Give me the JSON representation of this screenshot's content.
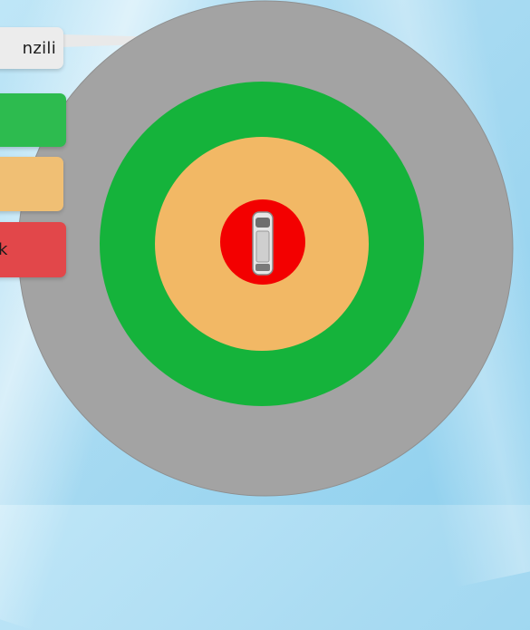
{
  "zones": [
    {
      "key": "gray",
      "label": "nzili",
      "color": "#a3a3a3"
    },
    {
      "key": "green",
      "label": "",
      "color": "#15b33b"
    },
    {
      "key": "orange",
      "label": "",
      "color": "#f2b865"
    },
    {
      "key": "red",
      "label": "k",
      "color": "#f30000"
    }
  ],
  "colors": {
    "gray_callout": "#ececec",
    "green_callout": "#2dbb4f",
    "orange_callout": "#f0bf74",
    "red_callout": "#e2474a",
    "vehicle": "#e6e6e6"
  },
  "icons": {
    "vehicle": "car-top-view-icon"
  }
}
